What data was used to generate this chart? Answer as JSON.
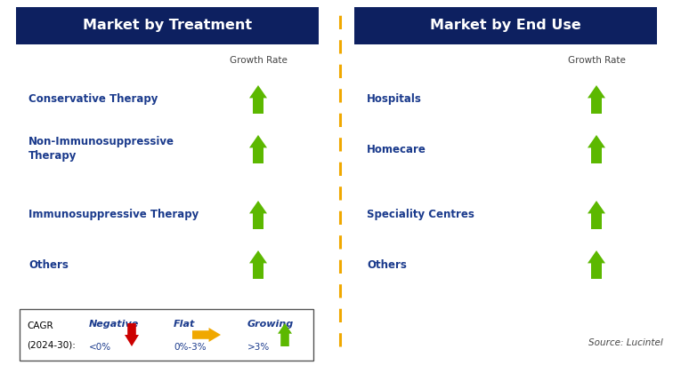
{
  "title_left": "Market by Treatment",
  "title_right": "Market by End Use",
  "header_bg": "#0d2060",
  "header_text_color": "#ffffff",
  "body_bg": "#ffffff",
  "left_items": [
    "Conservative Therapy",
    "Non-Immunosuppressive\nTherapy",
    "Immunosuppressive Therapy",
    "Others"
  ],
  "right_items": [
    "Hospitals",
    "Homecare",
    "Speciality Centres",
    "Others"
  ],
  "item_text_color": "#1a3a8c",
  "growth_rate_label": "Growth Rate",
  "growth_rate_label_color": "#444444",
  "arrow_up_color": "#5cb800",
  "arrow_flat_color": "#f0a800",
  "arrow_down_color": "#cc0000",
  "divider_color": "#f0a800",
  "legend_box_color": "#ffffff",
  "legend_border_color": "#555555",
  "legend_items": [
    {
      "label": "Negative",
      "sublabel": "<0%",
      "type": "down"
    },
    {
      "label": "Flat",
      "sublabel": "0%-3%",
      "type": "flat"
    },
    {
      "label": "Growing",
      "sublabel": ">3%",
      "type": "up"
    }
  ],
  "cagr_line1": "CAGR",
  "cagr_line2": "(2024-30):",
  "source_text": "Source: Lucintel",
  "fig_width": 7.65,
  "fig_height": 4.2,
  "dpi": 100
}
